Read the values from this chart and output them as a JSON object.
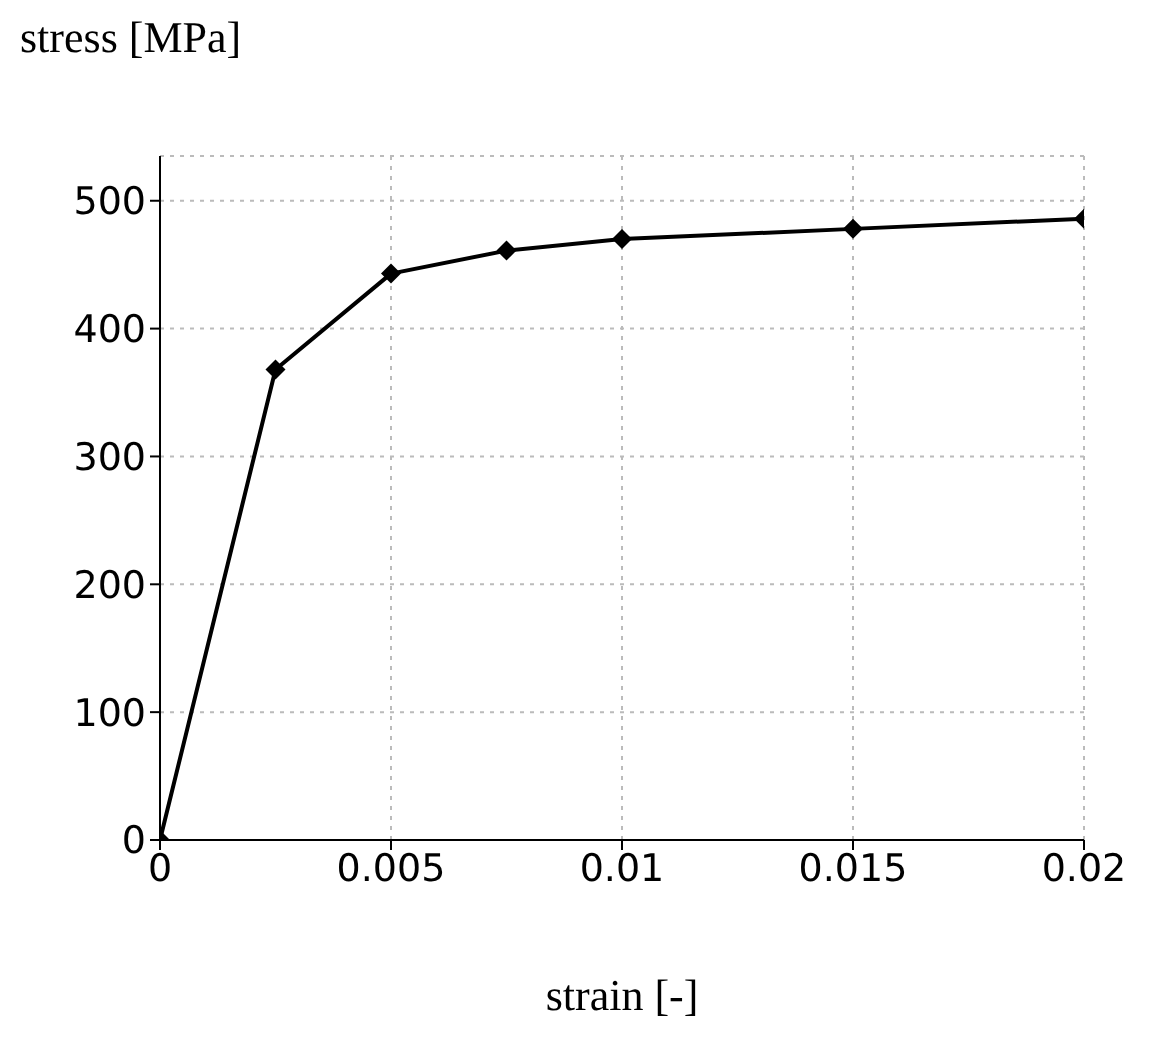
{
  "chart_data": {
    "type": "line",
    "xlabel": "strain [-]",
    "ylabel": "stress [MPa]",
    "x": [
      0,
      0.0025,
      0.005,
      0.0075,
      0.01,
      0.015,
      0.02
    ],
    "series": [
      {
        "color": "#000000",
        "values": [
          0,
          368,
          443,
          461,
          470,
          478,
          486
        ]
      }
    ],
    "xlim": [
      0,
      0.02
    ],
    "xticks": [
      0,
      0.005,
      0.01,
      0.015,
      0.02
    ],
    "ylim": [
      0,
      535
    ],
    "yticks": [
      0,
      100,
      200,
      300,
      400,
      500
    ],
    "grid": true,
    "marker": "diamond",
    "line_style": "solid"
  }
}
